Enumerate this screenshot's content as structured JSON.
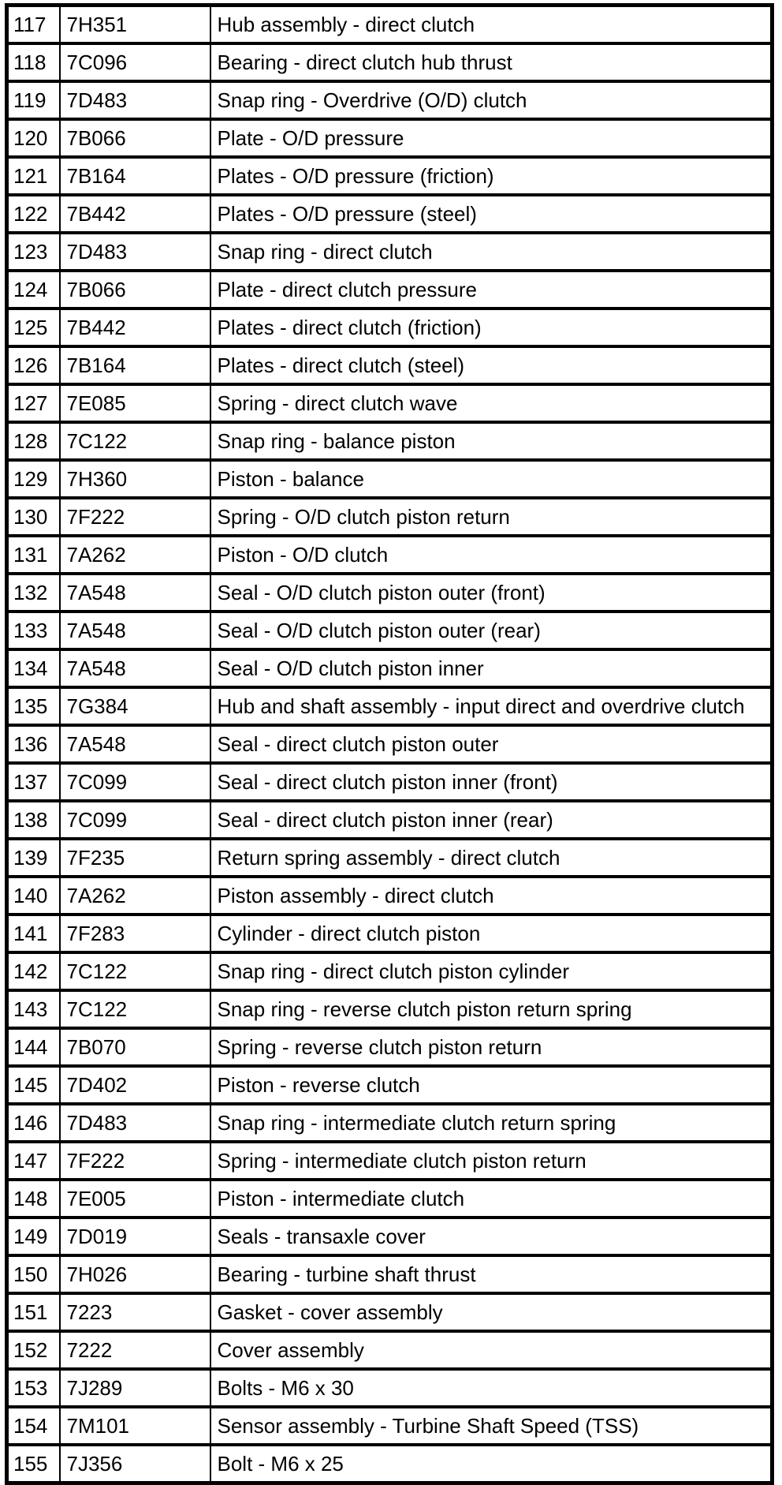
{
  "table": {
    "rows": [
      {
        "item": "117",
        "part": "7H351",
        "desc": "Hub assembly - direct clutch"
      },
      {
        "item": "118",
        "part": "7C096",
        "desc": "Bearing - direct clutch hub thrust"
      },
      {
        "item": "119",
        "part": "7D483",
        "desc": "Snap ring - Overdrive (O/D) clutch"
      },
      {
        "item": "120",
        "part": "7B066",
        "desc": "Plate - O/D pressure"
      },
      {
        "item": "121",
        "part": "7B164",
        "desc": "Plates - O/D pressure (friction)"
      },
      {
        "item": "122",
        "part": "7B442",
        "desc": "Plates - O/D pressure (steel)"
      },
      {
        "item": "123",
        "part": "7D483",
        "desc": "Snap ring - direct clutch"
      },
      {
        "item": "124",
        "part": "7B066",
        "desc": "Plate - direct clutch pressure"
      },
      {
        "item": "125",
        "part": "7B442",
        "desc": "Plates - direct clutch (friction)"
      },
      {
        "item": "126",
        "part": "7B164",
        "desc": "Plates - direct clutch (steel)"
      },
      {
        "item": "127",
        "part": "7E085",
        "desc": "Spring - direct clutch wave"
      },
      {
        "item": "128",
        "part": "7C122",
        "desc": "Snap ring - balance piston"
      },
      {
        "item": "129",
        "part": "7H360",
        "desc": "Piston - balance"
      },
      {
        "item": "130",
        "part": "7F222",
        "desc": "Spring - O/D clutch piston return"
      },
      {
        "item": "131",
        "part": "7A262",
        "desc": "Piston - O/D clutch"
      },
      {
        "item": "132",
        "part": "7A548",
        "desc": "Seal - O/D clutch piston outer (front)"
      },
      {
        "item": "133",
        "part": "7A548",
        "desc": "Seal - O/D clutch piston outer (rear)"
      },
      {
        "item": "134",
        "part": "7A548",
        "desc": "Seal - O/D clutch piston inner"
      },
      {
        "item": "135",
        "part": "7G384",
        "desc": "Hub and shaft assembly - input direct and overdrive clutch"
      },
      {
        "item": "136",
        "part": "7A548",
        "desc": "Seal - direct clutch piston outer"
      },
      {
        "item": "137",
        "part": "7C099",
        "desc": "Seal - direct clutch piston inner (front)"
      },
      {
        "item": "138",
        "part": "7C099",
        "desc": "Seal - direct clutch piston inner (rear)"
      },
      {
        "item": "139",
        "part": "7F235",
        "desc": "Return spring assembly - direct clutch"
      },
      {
        "item": "140",
        "part": "7A262",
        "desc": "Piston assembly - direct clutch"
      },
      {
        "item": "141",
        "part": "7F283",
        "desc": "Cylinder - direct clutch piston"
      },
      {
        "item": "142",
        "part": "7C122",
        "desc": "Snap ring - direct clutch piston cylinder"
      },
      {
        "item": "143",
        "part": "7C122",
        "desc": "Snap ring - reverse clutch piston return spring"
      },
      {
        "item": "144",
        "part": "7B070",
        "desc": "Spring - reverse clutch piston return"
      },
      {
        "item": "145",
        "part": "7D402",
        "desc": "Piston - reverse clutch"
      },
      {
        "item": "146",
        "part": "7D483",
        "desc": "Snap ring - intermediate clutch return spring"
      },
      {
        "item": "147",
        "part": "7F222",
        "desc": "Spring - intermediate clutch piston return"
      },
      {
        "item": "148",
        "part": "7E005",
        "desc": "Piston - intermediate clutch"
      },
      {
        "item": "149",
        "part": "7D019",
        "desc": "Seals - transaxle cover"
      },
      {
        "item": "150",
        "part": "7H026",
        "desc": "Bearing - turbine shaft thrust"
      },
      {
        "item": "151",
        "part": "7223",
        "desc": "Gasket - cover assembly"
      },
      {
        "item": "152",
        "part": "7222",
        "desc": "Cover assembly"
      },
      {
        "item": "153",
        "part": "7J289",
        "desc": "Bolts - M6 x 30"
      },
      {
        "item": "154",
        "part": "7M101",
        "desc": "Sensor assembly - Turbine Shaft Speed (TSS)"
      },
      {
        "item": "155",
        "part": "7J356",
        "desc": "Bolt - M6 x 25"
      }
    ]
  }
}
